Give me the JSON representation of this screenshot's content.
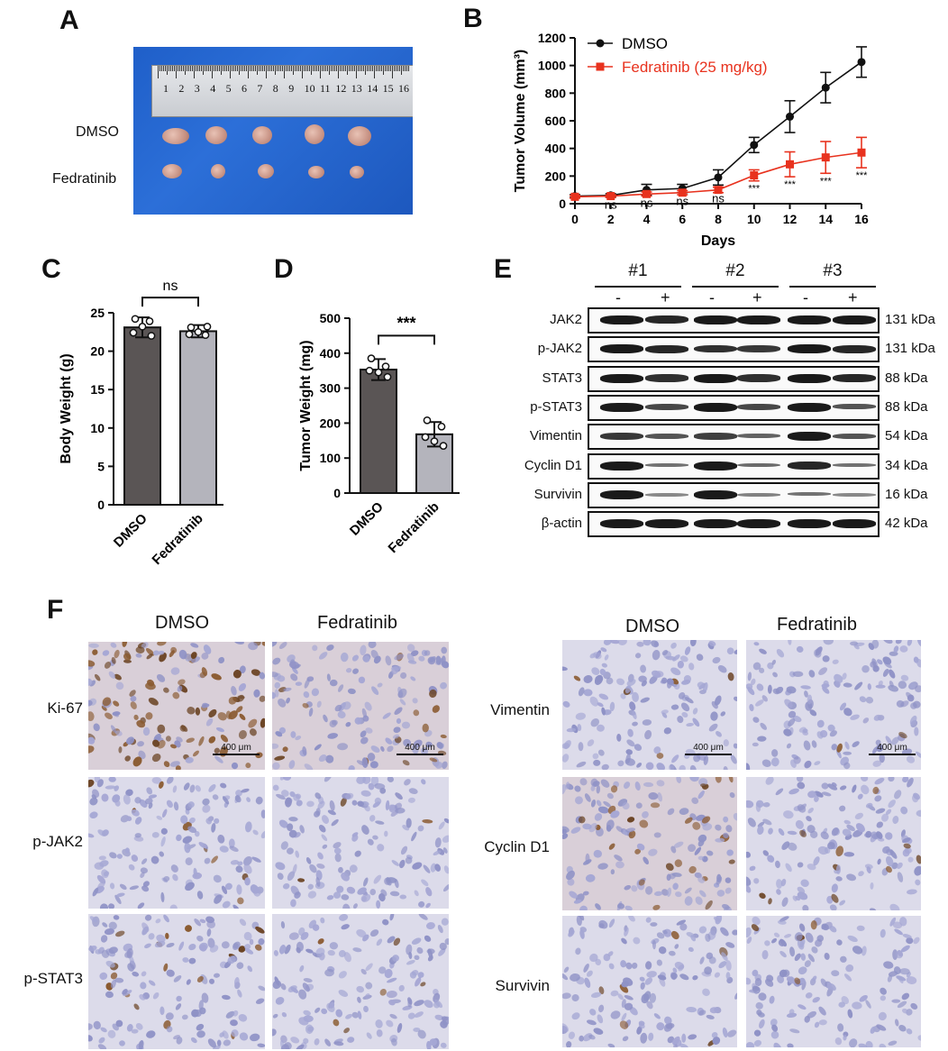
{
  "panels": {
    "a": "A",
    "b": "B",
    "c": "C",
    "d": "D",
    "e": "E",
    "f": "F"
  },
  "panelA": {
    "ruler_numbers": [
      "1",
      "2",
      "3",
      "4",
      "5",
      "6",
      "7",
      "8",
      "9",
      "10",
      "11",
      "12",
      "13",
      "14",
      "15",
      "16"
    ],
    "row_labels": [
      "DMSO",
      "Fedratinib"
    ]
  },
  "panelB": {
    "ylabel": "Tumor Volume (mm³)",
    "xlabel": "Days",
    "legend": [
      "DMSO",
      "Fedratinib (25 mg/kg)"
    ],
    "colors": {
      "dmso": "#111111",
      "fed": "#e8321e"
    }
  },
  "panelC": {
    "ylabel": "Body Weight (g)",
    "sig": "ns",
    "categories": [
      "DMSO",
      "Fedratinib"
    ]
  },
  "panelD": {
    "ylabel": "Tumor Weight (mg)",
    "sig": "***",
    "categories": [
      "DMSO",
      "Fedratinib"
    ]
  },
  "panelE": {
    "groups": [
      "#1",
      "#2",
      "#3"
    ],
    "lanes": [
      "-",
      "+",
      "-",
      "+",
      "-",
      "+"
    ],
    "rows": [
      {
        "name": "JAK2",
        "kda": "131 kDa"
      },
      {
        "name": "p-JAK2",
        "kda": "131 kDa"
      },
      {
        "name": "STAT3",
        "kda": "88 kDa"
      },
      {
        "name": "p-STAT3",
        "kda": "88 kDa"
      },
      {
        "name": "Vimentin",
        "kda": "54 kDa"
      },
      {
        "name": "Cyclin D1",
        "kda": "34 kDa"
      },
      {
        "name": "Survivin",
        "kda": "16 kDa"
      },
      {
        "name": "β-actin",
        "kda": "42 kDa"
      }
    ]
  },
  "panelF": {
    "left_cols": [
      "DMSO",
      "Fedratinib"
    ],
    "right_cols": [
      "DMSO",
      "Fedratinib"
    ],
    "left_rows": [
      "Ki-67",
      "p-JAK2",
      "p-STAT3"
    ],
    "right_rows": [
      "Vimentin",
      "Cyclin D1",
      "Survivin"
    ],
    "scale": "400 μm"
  },
  "chart_data": [
    {
      "type": "line",
      "x": [
        0,
        2,
        4,
        6,
        8,
        10,
        12,
        14,
        16
      ],
      "xlabel": "Days",
      "ylabel": "Tumor Volume (mm³)",
      "xlim": [
        0,
        16
      ],
      "ylim": [
        0,
        1200
      ],
      "xticks": [
        0,
        2,
        4,
        6,
        8,
        10,
        12,
        14,
        16
      ],
      "yticks": [
        0,
        200,
        400,
        600,
        800,
        1000,
        1200
      ],
      "series": [
        {
          "name": "DMSO",
          "values": [
            55,
            60,
            100,
            110,
            190,
            425,
            630,
            840,
            1025
          ],
          "errors": [
            10,
            12,
            40,
            30,
            55,
            55,
            115,
            110,
            110
          ]
        },
        {
          "name": "Fedratinib (25 mg/kg)",
          "values": [
            50,
            55,
            70,
            80,
            100,
            205,
            285,
            335,
            370
          ],
          "errors": [
            10,
            10,
            15,
            15,
            20,
            40,
            90,
            115,
            110
          ]
        }
      ],
      "annotations": [
        "ns",
        "ns",
        "ns",
        "ns",
        "***",
        "***",
        "***",
        "***"
      ]
    },
    {
      "type": "bar",
      "categories": [
        "DMSO",
        "Fedratinib"
      ],
      "values": [
        23.1,
        22.6
      ],
      "errors": [
        1.3,
        0.8
      ],
      "ylabel": "Body Weight (g)",
      "ylim": [
        0,
        25
      ],
      "yticks": [
        0,
        5,
        10,
        15,
        20,
        25
      ],
      "points": [
        [
          24.2,
          23.9,
          22.4,
          22.0,
          23.2
        ],
        [
          23.1,
          22.1,
          22.2,
          23.2,
          22.5
        ]
      ],
      "significance": "ns"
    },
    {
      "type": "bar",
      "categories": [
        "DMSO",
        "Fedratinib"
      ],
      "values": [
        353,
        168
      ],
      "errors": [
        30,
        35
      ],
      "ylabel": "Tumor Weight (mg)",
      "ylim": [
        0,
        500
      ],
      "yticks": [
        0,
        100,
        200,
        300,
        400,
        500
      ],
      "points": [
        [
          385,
          362,
          350,
          332,
          345
        ],
        [
          208,
          190,
          160,
          135,
          148
        ]
      ],
      "significance": "***"
    }
  ]
}
